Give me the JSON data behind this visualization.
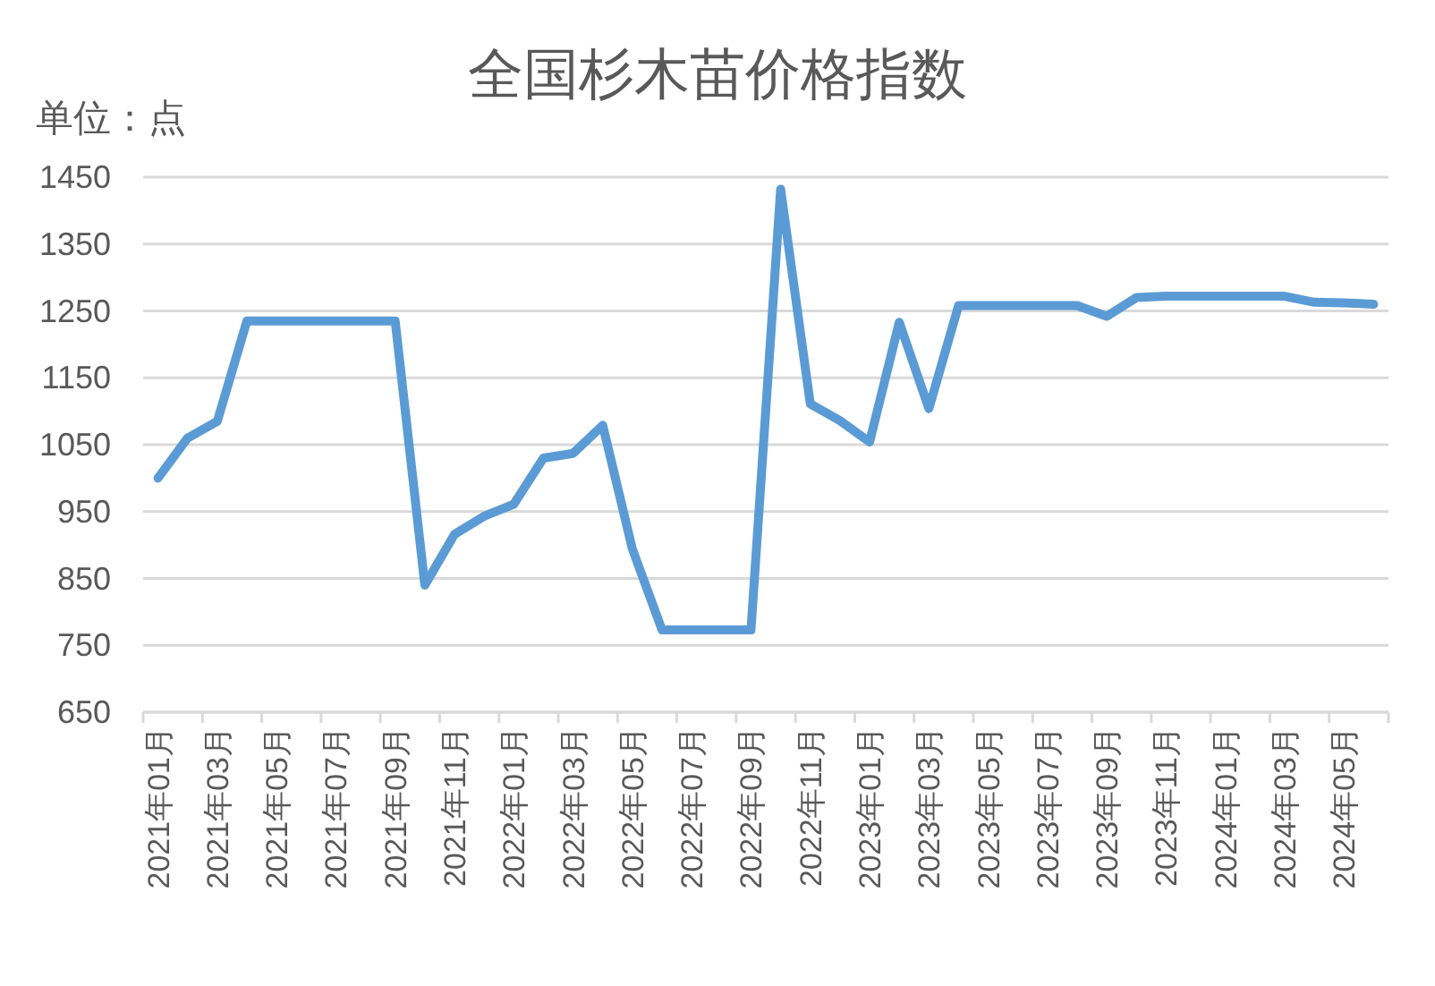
{
  "chart_data": {
    "type": "line",
    "title": "全国杉木苗价格指数",
    "ylabel": "单位：点",
    "categories": [
      "2021年01月",
      null,
      "2021年03月",
      null,
      "2021年05月",
      null,
      "2021年07月",
      null,
      "2021年09月",
      null,
      "2021年11月",
      null,
      "2022年01月",
      null,
      "2022年03月",
      null,
      "2022年05月",
      null,
      "2022年07月",
      null,
      "2022年09月",
      null,
      "2022年11月",
      null,
      "2023年01月",
      null,
      "2023年03月",
      null,
      "2023年05月",
      null,
      "2023年07月",
      null,
      "2023年09月",
      null,
      "2023年11月",
      null,
      "2024年01月",
      null,
      "2024年03月",
      null,
      "2024年05月",
      null
    ],
    "series": [
      {
        "color": "#5b9bd5",
        "values": [
          1000,
          1060,
          1085,
          1235,
          1235,
          1235,
          1235,
          1235,
          1235,
          840,
          916,
          943,
          961,
          1030,
          1037,
          1079,
          894,
          773,
          773,
          773,
          773,
          1432,
          1111,
          1086,
          1054,
          1233,
          1104,
          1258,
          1258,
          1258,
          1258,
          1258,
          1242,
          1270,
          1272,
          1272,
          1272,
          1272,
          1272,
          1263,
          1262,
          1260
        ]
      }
    ],
    "ylim": [
      650,
      1450
    ],
    "yticks": [
      650,
      750,
      850,
      950,
      1050,
      1150,
      1250,
      1350,
      1450
    ],
    "grid": "y"
  }
}
